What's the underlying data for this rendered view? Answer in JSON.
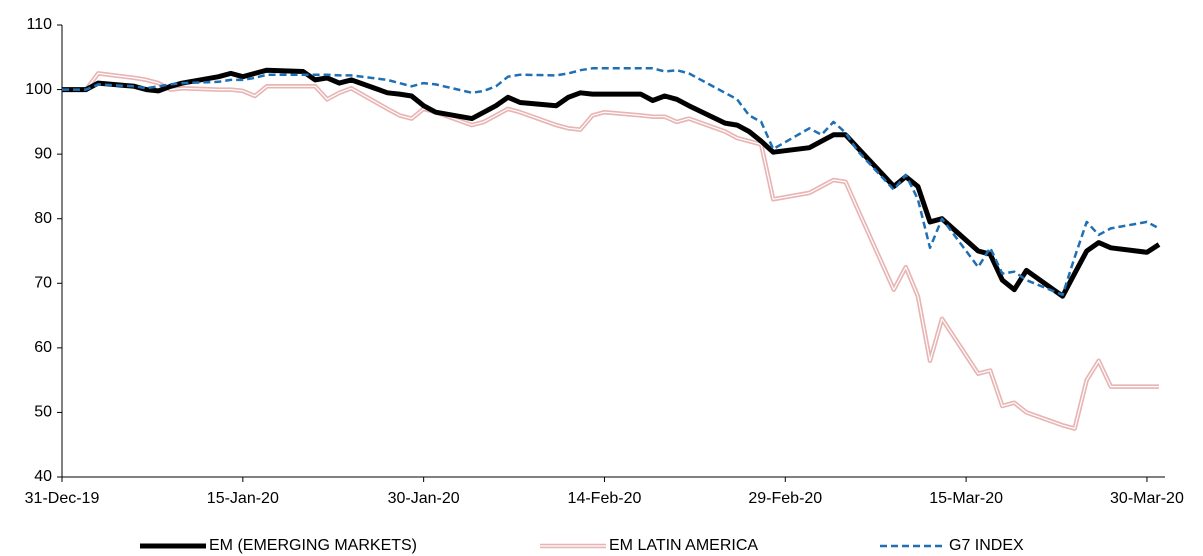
{
  "chart_data": {
    "type": "line",
    "x": [
      "2019-12-31",
      "2020-01-02",
      "2020-01-03",
      "2020-01-06",
      "2020-01-07",
      "2020-01-08",
      "2020-01-09",
      "2020-01-10",
      "2020-01-13",
      "2020-01-14",
      "2020-01-15",
      "2020-01-16",
      "2020-01-17",
      "2020-01-20",
      "2020-01-21",
      "2020-01-22",
      "2020-01-23",
      "2020-01-24",
      "2020-01-27",
      "2020-01-28",
      "2020-01-29",
      "2020-01-30",
      "2020-01-31",
      "2020-02-03",
      "2020-02-04",
      "2020-02-05",
      "2020-02-06",
      "2020-02-07",
      "2020-02-10",
      "2020-02-11",
      "2020-02-12",
      "2020-02-13",
      "2020-02-14",
      "2020-02-17",
      "2020-02-18",
      "2020-02-19",
      "2020-02-20",
      "2020-02-21",
      "2020-02-24",
      "2020-02-25",
      "2020-02-26",
      "2020-02-27",
      "2020-02-28",
      "2020-03-02",
      "2020-03-03",
      "2020-03-04",
      "2020-03-05",
      "2020-03-06",
      "2020-03-09",
      "2020-03-10",
      "2020-03-11",
      "2020-03-12",
      "2020-03-13",
      "2020-03-16",
      "2020-03-17",
      "2020-03-18",
      "2020-03-19",
      "2020-03-20",
      "2020-03-23",
      "2020-03-24",
      "2020-03-25",
      "2020-03-26",
      "2020-03-27",
      "2020-03-30",
      "2020-03-31"
    ],
    "series": [
      {
        "name": "EM (EMERGING MARKETS)",
        "color": "#000000",
        "style": "solid",
        "values": [
          100,
          100,
          101,
          100.5,
          100,
          99.8,
          100.5,
          101,
          102,
          102.5,
          102,
          102.5,
          103,
          102.8,
          101.5,
          101.8,
          101,
          101.5,
          99.5,
          99.3,
          99,
          97.5,
          96.5,
          95.5,
          96.5,
          97.5,
          98.8,
          98,
          97.5,
          98.8,
          99.5,
          99.3,
          99.3,
          99.3,
          98.3,
          99,
          98.5,
          97.5,
          94.8,
          94.5,
          93.5,
          92,
          90.3,
          91,
          92,
          93,
          93,
          91,
          85,
          86.5,
          85,
          79.5,
          80,
          75,
          74.5,
          70.5,
          69,
          72,
          68,
          71.5,
          75,
          76.3,
          75.5,
          74.8,
          76
        ]
      },
      {
        "name": "EM LATIN AMERICA",
        "color": "#e8b4b4",
        "style": "double",
        "values": [
          100,
          100,
          102.5,
          101.8,
          101.5,
          101,
          100,
          100.2,
          100,
          100,
          99.8,
          99,
          100.5,
          100.5,
          100.5,
          98.5,
          99.5,
          100.2,
          97,
          96,
          95.5,
          97,
          96.5,
          94.5,
          95,
          96,
          97,
          96.5,
          94.5,
          94,
          93.8,
          96,
          96.5,
          96,
          95.8,
          95.8,
          95,
          95.5,
          93.5,
          92.5,
          92,
          91.5,
          83,
          84,
          85,
          86,
          85.7,
          81.5,
          69,
          72.5,
          68,
          58,
          64.5,
          56,
          56.5,
          51,
          51.5,
          50,
          48,
          47.5,
          55,
          58,
          54,
          54,
          54
        ]
      },
      {
        "name": "G7 INDEX",
        "color": "#1f6fb5",
        "style": "dashed",
        "values": [
          100,
          100,
          100.8,
          100.5,
          100.2,
          100.5,
          100.8,
          101,
          101.2,
          101.5,
          101.5,
          101.8,
          102.3,
          102.3,
          102.3,
          102.3,
          102.2,
          102.2,
          101.5,
          101,
          100.5,
          101,
          100.8,
          99.5,
          99.8,
          100.5,
          102,
          102.3,
          102.2,
          102.5,
          103,
          103.3,
          103.3,
          103.3,
          103.3,
          102.8,
          103,
          102.5,
          99.5,
          98.5,
          96,
          95,
          90.8,
          94,
          93,
          95,
          93.3,
          90.5,
          84.5,
          86.8,
          83,
          75.5,
          80,
          72.5,
          75.5,
          71.5,
          71.8,
          70.5,
          68.2,
          74,
          79.5,
          77.5,
          78.5,
          79.5,
          78.5
        ]
      }
    ],
    "xlim": [
      "2019-12-31",
      "2020-03-31"
    ],
    "xticks": [
      {
        "value": "2019-12-31",
        "label": "31-Dec-19"
      },
      {
        "value": "2020-01-15",
        "label": "15-Jan-20"
      },
      {
        "value": "2020-01-30",
        "label": "30-Jan-20"
      },
      {
        "value": "2020-02-14",
        "label": "14-Feb-20"
      },
      {
        "value": "2020-02-29",
        "label": "29-Feb-20"
      },
      {
        "value": "2020-03-15",
        "label": "15-Mar-20"
      },
      {
        "value": "2020-03-30",
        "label": "30-Mar-20"
      }
    ],
    "ylim": [
      40,
      110
    ],
    "yticks": [
      40,
      50,
      60,
      70,
      80,
      90,
      100,
      110
    ],
    "grid": false,
    "legend": "bottom"
  }
}
